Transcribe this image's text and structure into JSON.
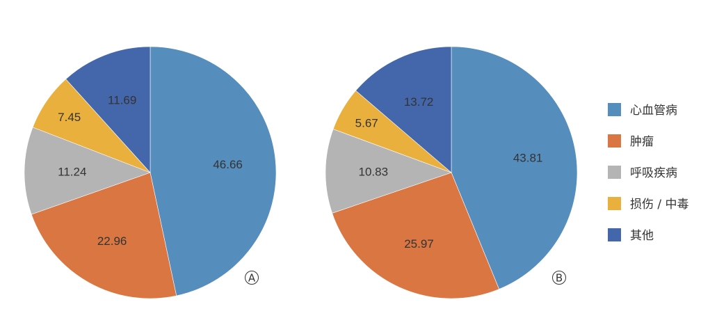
{
  "chart_data": {
    "type": "pie",
    "legend": {
      "position": "right",
      "entries": [
        {
          "label": "心血管病",
          "color": "#558dbd"
        },
        {
          "label": "肿瘤",
          "color": "#d97641"
        },
        {
          "label": "呼吸疾病",
          "color": "#b4b4b5"
        },
        {
          "label": "损伤 / 中毒",
          "color": "#e9b03d"
        },
        {
          "label": "其他",
          "color": "#4367aa"
        }
      ]
    },
    "charts": [
      {
        "panel": "A",
        "values": [
          46.66,
          22.96,
          11.24,
          7.45,
          11.69
        ],
        "labels": [
          "46.66",
          "22.96",
          "11.24",
          "7.45",
          "11.69"
        ]
      },
      {
        "panel": "B",
        "values": [
          43.81,
          25.97,
          10.83,
          5.67,
          13.72
        ],
        "labels": [
          "43.81",
          "25.97",
          "10.83",
          "5.67",
          "13.72"
        ]
      }
    ]
  }
}
